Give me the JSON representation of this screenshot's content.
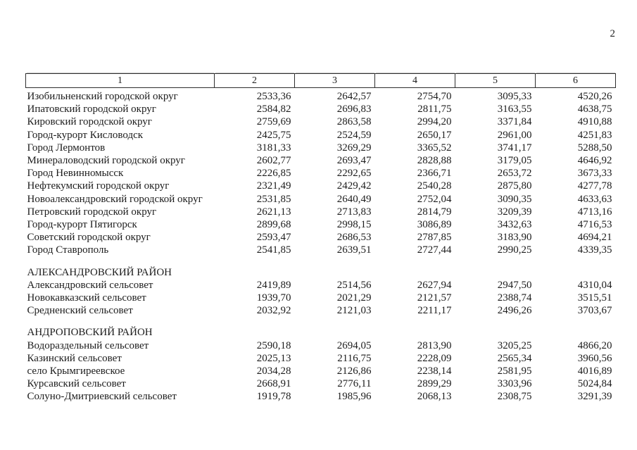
{
  "page": {
    "number": "2"
  },
  "table": {
    "columns": [
      "1",
      "2",
      "3",
      "4",
      "5",
      "6"
    ],
    "rows": [
      {
        "type": "data",
        "name": "Изобильненский городской округ",
        "values": [
          "2533,36",
          "2642,57",
          "2754,70",
          "3095,33",
          "4520,26"
        ]
      },
      {
        "type": "data",
        "name": "Ипатовский городской округ",
        "values": [
          "2584,82",
          "2696,83",
          "2811,75",
          "3163,55",
          "4638,75"
        ]
      },
      {
        "type": "data",
        "name": "Кировский городской округ",
        "values": [
          "2759,69",
          "2863,58",
          "2994,20",
          "3371,84",
          "4910,88"
        ]
      },
      {
        "type": "data",
        "name": "Город-курорт Кисловодск",
        "values": [
          "2425,75",
          "2524,59",
          "2650,17",
          "2961,00",
          "4251,83"
        ]
      },
      {
        "type": "data",
        "name": "Город Лермонтов",
        "values": [
          "3181,33",
          "3269,29",
          "3365,52",
          "3741,17",
          "5288,50"
        ]
      },
      {
        "type": "data",
        "name": "Минераловодский городской округ",
        "values": [
          "2602,77",
          "2693,47",
          "2828,88",
          "3179,05",
          "4646,92"
        ]
      },
      {
        "type": "data",
        "name": "Город Невинномысск",
        "values": [
          "2226,85",
          "2292,65",
          "2366,71",
          "2653,72",
          "3673,33"
        ]
      },
      {
        "type": "data",
        "name": "Нефтекумский городской округ",
        "values": [
          "2321,49",
          "2429,42",
          "2540,28",
          "2875,80",
          "4277,78"
        ]
      },
      {
        "type": "data",
        "name": "Новоалександровский городской округ",
        "values": [
          "2531,85",
          "2640,49",
          "2752,04",
          "3090,35",
          "4633,63"
        ]
      },
      {
        "type": "data",
        "name": "Петровский городской округ",
        "values": [
          "2621,13",
          "2713,83",
          "2814,79",
          "3209,39",
          "4713,16"
        ]
      },
      {
        "type": "data",
        "name": "Город-курорт Пятигорск",
        "values": [
          "2899,68",
          "2998,15",
          "3086,89",
          "3432,63",
          "4716,53"
        ]
      },
      {
        "type": "data",
        "name": "Советский городской округ",
        "values": [
          "2593,47",
          "2686,53",
          "2787,85",
          "3183,90",
          "4694,21"
        ]
      },
      {
        "type": "data",
        "name": "Город Ставрополь",
        "values": [
          "2541,85",
          "2639,51",
          "2727,44",
          "2990,25",
          "4339,35"
        ]
      },
      {
        "type": "section",
        "name": "АЛЕКСАНДРОВСКИЙ РАЙОН"
      },
      {
        "type": "data",
        "name": "Александровский сельсовет",
        "values": [
          "2419,89",
          "2514,56",
          "2627,94",
          "2947,50",
          "4310,04"
        ]
      },
      {
        "type": "data",
        "name": "Новокавказский сельсовет",
        "values": [
          "1939,70",
          "2021,29",
          "2121,57",
          "2388,74",
          "3515,51"
        ]
      },
      {
        "type": "data",
        "name": "Средненский сельсовет",
        "values": [
          "2032,92",
          "2121,03",
          "2211,17",
          "2496,26",
          "3703,67"
        ]
      },
      {
        "type": "section",
        "name": "АНДРОПОВСКИЙ РАЙОН"
      },
      {
        "type": "data",
        "name": "Водораздельный сельсовет",
        "values": [
          "2590,18",
          "2694,05",
          "2813,90",
          "3205,25",
          "4866,20"
        ]
      },
      {
        "type": "data",
        "name": "Казинский сельсовет",
        "values": [
          "2025,13",
          "2116,75",
          "2228,09",
          "2565,34",
          "3960,56"
        ]
      },
      {
        "type": "data",
        "name": "село Крымгиреевское",
        "values": [
          "2034,28",
          "2126,86",
          "2238,14",
          "2581,95",
          "4016,89"
        ]
      },
      {
        "type": "data",
        "name": "Курсавский сельсовет",
        "values": [
          "2668,91",
          "2776,11",
          "2899,29",
          "3303,96",
          "5024,84"
        ]
      },
      {
        "type": "data",
        "name": "Солуно-Дмитриевский сельсовет",
        "values": [
          "1919,78",
          "1985,96",
          "2068,13",
          "2308,75",
          "3291,39"
        ]
      }
    ]
  }
}
